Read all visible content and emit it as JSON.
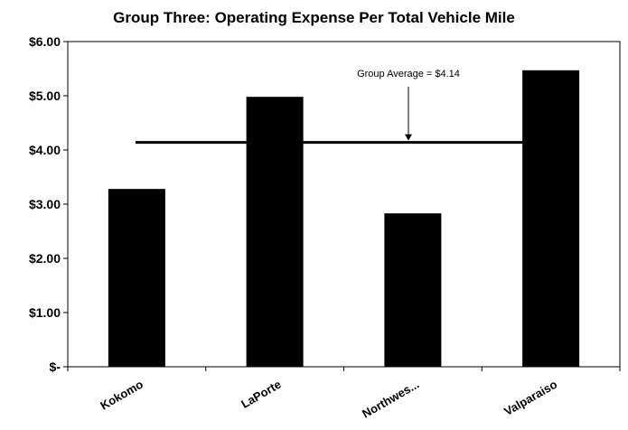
{
  "chart_data": {
    "type": "bar",
    "title": "Group Three:  Operating Expense Per Total Vehicle Mile",
    "xlabel": "",
    "ylabel": "",
    "categories": [
      "Kokomo",
      "LaPorte",
      "Northwes...",
      "Valparaiso"
    ],
    "values": [
      3.28,
      4.98,
      2.83,
      5.47
    ],
    "ylim": [
      0,
      6
    ],
    "yticks": [
      0,
      1,
      2,
      3,
      4,
      5,
      6
    ],
    "ytick_labels": [
      "$-",
      "$1.00",
      "$2.00",
      "$3.00",
      "$4.00",
      "$5.00",
      "$6.00"
    ],
    "grid": false,
    "legend": "none",
    "bar_color": "#000000",
    "reference_line": {
      "value": 4.14,
      "label": "Group Average = $4.14"
    }
  }
}
